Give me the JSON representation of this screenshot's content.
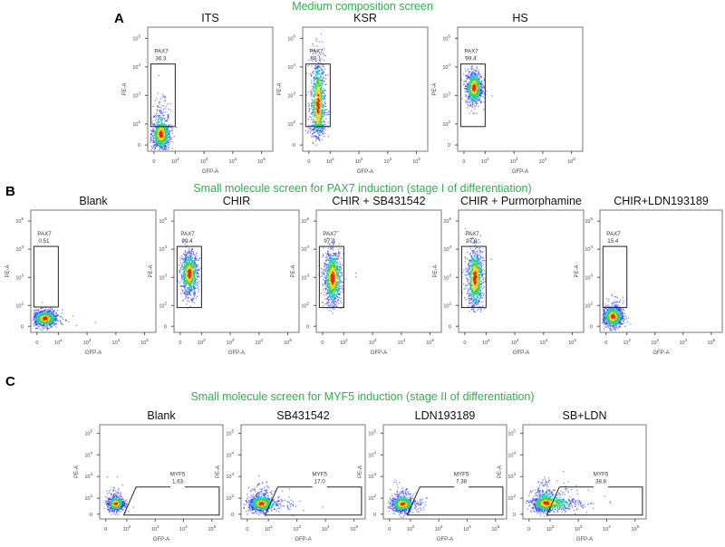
{
  "chart_data": {
    "type": "scatter",
    "axis_ticks": [
      "0",
      "10^2",
      "10^3",
      "10^4",
      "10^5"
    ],
    "xlabel": "GFP-A",
    "ylabel": "PE-A",
    "sections": [
      {
        "label": "A",
        "title": "Medium composition screen",
        "plots": [
          {
            "title": "ITS",
            "gate_name": "PAX7",
            "gate_value": "36.3",
            "gate_type": "rect",
            "gate": [
              [
                -0.3,
                1.75
              ],
              [
                2.0,
                4.1
              ]
            ],
            "cloud": {
              "cx": 0.6,
              "cy": 1.1,
              "sx": 0.45,
              "sy": 0.8,
              "n": 900
            }
          },
          {
            "title": "KSR",
            "gate_name": "PAX7",
            "gate_value": "80.1",
            "gate_type": "rect",
            "gate": [
              [
                -0.3,
                1.75
              ],
              [
                2.0,
                4.1
              ]
            ],
            "cloud": {
              "cx": 0.8,
              "cy": 2.7,
              "sx": 0.35,
              "sy": 0.85,
              "n": 900
            }
          },
          {
            "title": "HS",
            "gate_name": "PAX7",
            "gate_value": "99.4",
            "gate_type": "rect",
            "gate": [
              [
                -0.3,
                1.75
              ],
              [
                2.0,
                4.1
              ]
            ],
            "cloud": {
              "cx": 0.9,
              "cy": 3.3,
              "sx": 0.4,
              "sy": 0.3,
              "n": 800
            }
          }
        ]
      },
      {
        "label": "B",
        "title": "Small molecule screen for PAX7 induction (stage I of differentiation)",
        "plots": [
          {
            "title": "Blank",
            "gate_name": "PAX7",
            "gate_value": "0.51",
            "gate_type": "rect",
            "gate": [
              [
                -0.3,
                1.85
              ],
              [
                2.0,
                4.1
              ]
            ],
            "cloud": {
              "cx": 0.7,
              "cy": 0.8,
              "sx": 0.6,
              "sy": 0.4,
              "n": 900
            }
          },
          {
            "title": "CHIR",
            "gate_name": "PAX7",
            "gate_value": "99.4",
            "gate_type": "rect",
            "gate": [
              [
                -0.3,
                1.8
              ],
              [
                2.0,
                4.1
              ]
            ],
            "cloud": {
              "cx": 0.8,
              "cy": 3.15,
              "sx": 0.4,
              "sy": 0.4,
              "n": 800
            }
          },
          {
            "title": "CHIR + SB431542",
            "gate_name": "PAX7",
            "gate_value": "97.3",
            "gate_type": "rect",
            "gate": [
              [
                -0.3,
                1.8
              ],
              [
                2.0,
                4.1
              ]
            ],
            "cloud": {
              "cx": 0.9,
              "cy": 3.0,
              "sx": 0.42,
              "sy": 0.5,
              "n": 900
            }
          },
          {
            "title": "CHIR + Purmorphamine",
            "gate_name": "PAX7",
            "gate_value": "97.0",
            "gate_type": "rect",
            "gate": [
              [
                -0.3,
                1.8
              ],
              [
                2.0,
                4.1
              ]
            ],
            "cloud": {
              "cx": 0.9,
              "cy": 3.0,
              "sx": 0.38,
              "sy": 0.55,
              "n": 900
            }
          },
          {
            "title": "CHIR+LDN193189",
            "gate_name": "PAX7",
            "gate_value": "15.4",
            "gate_type": "rect",
            "gate": [
              [
                -0.3,
                1.8
              ],
              [
                2.0,
                4.1
              ]
            ],
            "cloud": {
              "cx": 0.6,
              "cy": 1.0,
              "sx": 0.5,
              "sy": 0.55,
              "n": 900
            }
          }
        ]
      },
      {
        "label": "C",
        "title": "Small molecule screen for MYF5 induction (stage II of differentiation)",
        "plots": [
          {
            "title": "Blank",
            "gate_name": "MYF5",
            "gate_value": "1.63",
            "gate_type": "polygon",
            "gate": [
              [
                1.7,
                -0.1
              ],
              [
                2.33,
                2.52
              ],
              [
                5.26,
                2.52
              ],
              [
                5.26,
                -0.1
              ]
            ],
            "cloud": {
              "cx": 0.9,
              "cy": 1.4,
              "sx": 0.4,
              "sy": 0.45,
              "n": 800
            }
          },
          {
            "title": "SB431542",
            "gate_name": "MYF5",
            "gate_value": "17.0",
            "gate_type": "polygon",
            "gate": [
              [
                1.7,
                -0.1
              ],
              [
                2.33,
                2.52
              ],
              [
                5.26,
                2.52
              ],
              [
                5.26,
                -0.1
              ]
            ],
            "cloud": {
              "cx": 1.3,
              "cy": 1.4,
              "sx": 0.6,
              "sy": 0.5,
              "n": 1000
            }
          },
          {
            "title": "LDN193189",
            "gate_name": "MYF5",
            "gate_value": "7.38",
            "gate_type": "polygon",
            "gate": [
              [
                1.7,
                -0.1
              ],
              [
                2.33,
                2.52
              ],
              [
                5.26,
                2.52
              ],
              [
                5.26,
                -0.1
              ]
            ],
            "cloud": {
              "cx": 1.2,
              "cy": 1.35,
              "sx": 0.55,
              "sy": 0.5,
              "n": 900
            }
          },
          {
            "title": "SB+LDN",
            "gate_name": "MYF5",
            "gate_value": "38.8",
            "gate_type": "polygon",
            "gate": [
              [
                1.7,
                -0.1
              ],
              [
                2.33,
                2.52
              ],
              [
                5.26,
                2.52
              ],
              [
                5.26,
                -0.1
              ]
            ],
            "cloud": {
              "cx": 1.6,
              "cy": 1.45,
              "sx": 0.7,
              "sy": 0.55,
              "n": 1100
            }
          }
        ]
      }
    ]
  }
}
